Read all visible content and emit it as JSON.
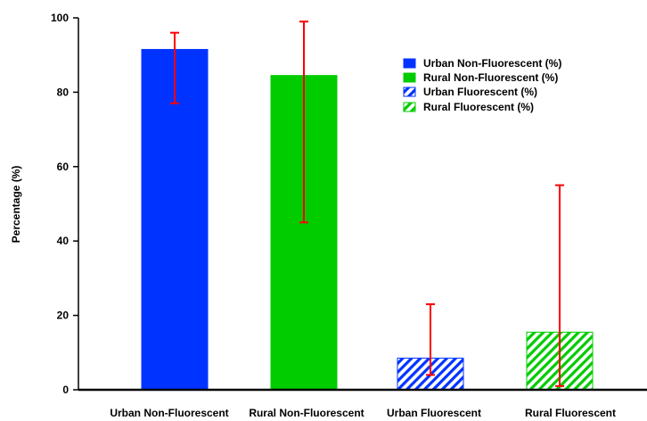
{
  "chart_data": {
    "type": "bar",
    "title": "",
    "xlabel": "",
    "ylabel": "Percentage  (%)",
    "ylim": [
      0,
      100
    ],
    "yticks": [
      0,
      20,
      40,
      60,
      80,
      100
    ],
    "categories": [
      "Urban Non-Fluorescent",
      "Rural Non-Fluorescent",
      "Urban Fluorescent",
      "Rural Fluorescent"
    ],
    "values": [
      91.5,
      84.5,
      8.5,
      15.5
    ],
    "error_bars": [
      {
        "low": 77,
        "high": 96
      },
      {
        "low": 45,
        "high": 99
      },
      {
        "low": 4,
        "high": 23
      },
      {
        "low": 1,
        "high": 55
      }
    ],
    "bar_styles": [
      {
        "fill": "#0033ff",
        "pattern": "solid"
      },
      {
        "fill": "#00cc00",
        "pattern": "solid"
      },
      {
        "fill": "#0033ff",
        "pattern": "hatched"
      },
      {
        "fill": "#00cc00",
        "pattern": "hatched"
      }
    ],
    "error_bar_color": "#ff0000",
    "legend": {
      "placement": "top-right",
      "entries": [
        "Urban Non-Fluorescent (%)",
        "Rural Non-Fluorescent (%)",
        "Urban Fluorescent (%)",
        "Rural Fluorescent (%)"
      ]
    },
    "grid": false
  }
}
